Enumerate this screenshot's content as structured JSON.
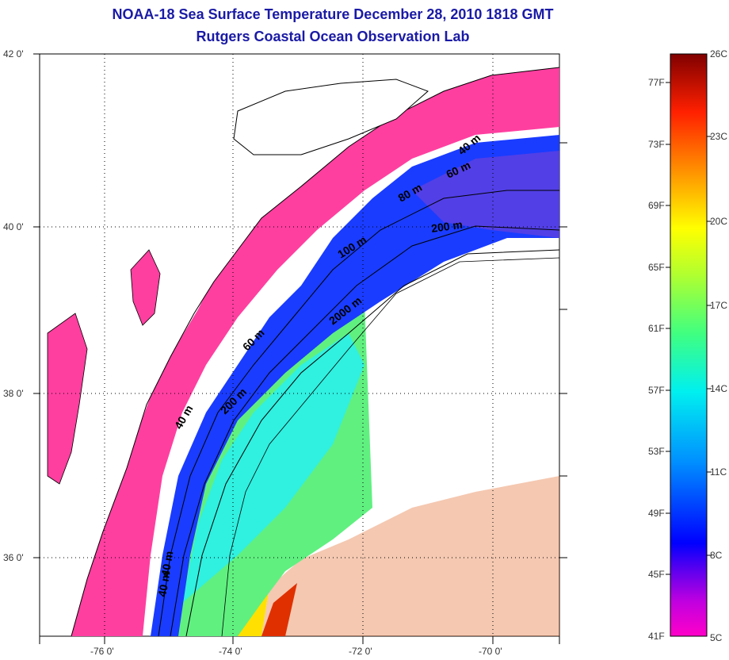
{
  "title": {
    "line1": "NOAA-18 Sea Surface Temperature December 28, 2010 1818 GMT",
    "line2": "Rutgers Coastal Ocean Observation Lab"
  },
  "axes": {
    "y_ticks": [
      "42 0'",
      "40 0'",
      "38 0'",
      "36 0'"
    ],
    "x_ticks": [
      "-76 0'",
      "-74 0'",
      "-72 0'",
      "-70 0'"
    ]
  },
  "contour_labels": {
    "c1": "40 m",
    "c2": "60 m",
    "c3": "80 m",
    "c4": "200 m",
    "c5": "100 m",
    "c6": "2000 m",
    "c7": "60 m",
    "c8": "200 m",
    "c9": "40 m",
    "c10": "40 m",
    "c11": "40 m"
  },
  "colorbar": {
    "fahrenheit": [
      "77F",
      "73F",
      "69F",
      "65F",
      "61F",
      "57F",
      "53F",
      "49F",
      "45F",
      "41F"
    ],
    "celsius": [
      "26C",
      "23C",
      "20C",
      "17C",
      "14C",
      "11C",
      "8C",
      "5C"
    ]
  },
  "colors": {
    "title": "#1a1aa6",
    "cold_pink": "#ff3fa0",
    "deep_blue": "#0a2cff",
    "land": "#ffffff"
  }
}
